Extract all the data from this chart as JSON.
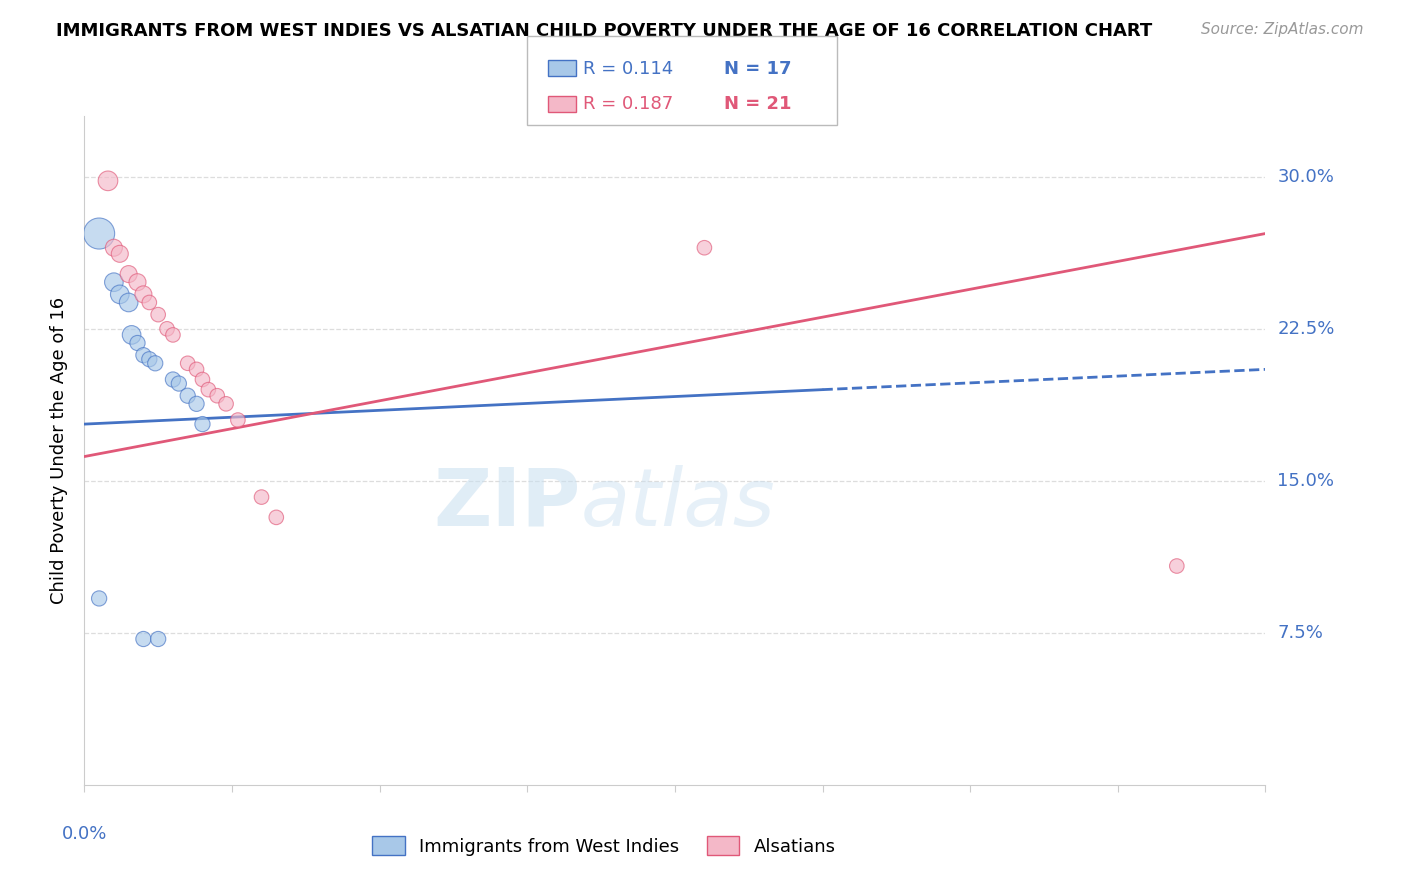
{
  "title": "IMMIGRANTS FROM WEST INDIES VS ALSATIAN CHILD POVERTY UNDER THE AGE OF 16 CORRELATION CHART",
  "source": "Source: ZipAtlas.com",
  "ylabel": "Child Poverty Under the Age of 16",
  "ytick_vals": [
    0.0,
    0.075,
    0.15,
    0.225,
    0.3
  ],
  "ytick_labels": [
    "",
    "7.5%",
    "15.0%",
    "22.5%",
    "30.0%"
  ],
  "xlim": [
    0.0,
    0.4
  ],
  "ylim": [
    0.0,
    0.33
  ],
  "blue_R": 0.114,
  "blue_N": 17,
  "pink_R": 0.187,
  "pink_N": 21,
  "blue_label": "Immigrants from West Indies",
  "pink_label": "Alsatians",
  "blue_color": "#a8c8e8",
  "pink_color": "#f4b8c8",
  "blue_line_color": "#4472c4",
  "pink_line_color": "#e05878",
  "watermark_zip": "ZIP",
  "watermark_atlas": "atlas",
  "blue_scatter": [
    [
      0.005,
      0.272
    ],
    [
      0.01,
      0.248
    ],
    [
      0.012,
      0.242
    ],
    [
      0.015,
      0.238
    ],
    [
      0.016,
      0.222
    ],
    [
      0.018,
      0.218
    ],
    [
      0.02,
      0.212
    ],
    [
      0.022,
      0.21
    ],
    [
      0.024,
      0.208
    ],
    [
      0.03,
      0.2
    ],
    [
      0.032,
      0.198
    ],
    [
      0.035,
      0.192
    ],
    [
      0.038,
      0.188
    ],
    [
      0.04,
      0.178
    ],
    [
      0.005,
      0.092
    ],
    [
      0.02,
      0.072
    ],
    [
      0.025,
      0.072
    ]
  ],
  "pink_scatter": [
    [
      0.008,
      0.298
    ],
    [
      0.01,
      0.265
    ],
    [
      0.012,
      0.262
    ],
    [
      0.015,
      0.252
    ],
    [
      0.018,
      0.248
    ],
    [
      0.02,
      0.242
    ],
    [
      0.022,
      0.238
    ],
    [
      0.025,
      0.232
    ],
    [
      0.028,
      0.225
    ],
    [
      0.03,
      0.222
    ],
    [
      0.035,
      0.208
    ],
    [
      0.038,
      0.205
    ],
    [
      0.04,
      0.2
    ],
    [
      0.042,
      0.195
    ],
    [
      0.045,
      0.192
    ],
    [
      0.048,
      0.188
    ],
    [
      0.052,
      0.18
    ],
    [
      0.06,
      0.142
    ],
    [
      0.065,
      0.132
    ],
    [
      0.21,
      0.265
    ],
    [
      0.37,
      0.108
    ]
  ],
  "blue_line_solid": [
    [
      0.0,
      0.178
    ],
    [
      0.25,
      0.195
    ]
  ],
  "blue_line_dashed": [
    [
      0.25,
      0.195
    ],
    [
      0.4,
      0.205
    ]
  ],
  "pink_line": [
    [
      0.0,
      0.162
    ],
    [
      0.4,
      0.272
    ]
  ],
  "xtick_positions": [
    0.0,
    0.05,
    0.1,
    0.15,
    0.2,
    0.25,
    0.3,
    0.35,
    0.4
  ],
  "grid_color": "#dddddd",
  "spine_color": "#cccccc",
  "tick_color": "#4472c4",
  "title_fontsize": 13,
  "source_fontsize": 11,
  "axis_fontsize": 13
}
